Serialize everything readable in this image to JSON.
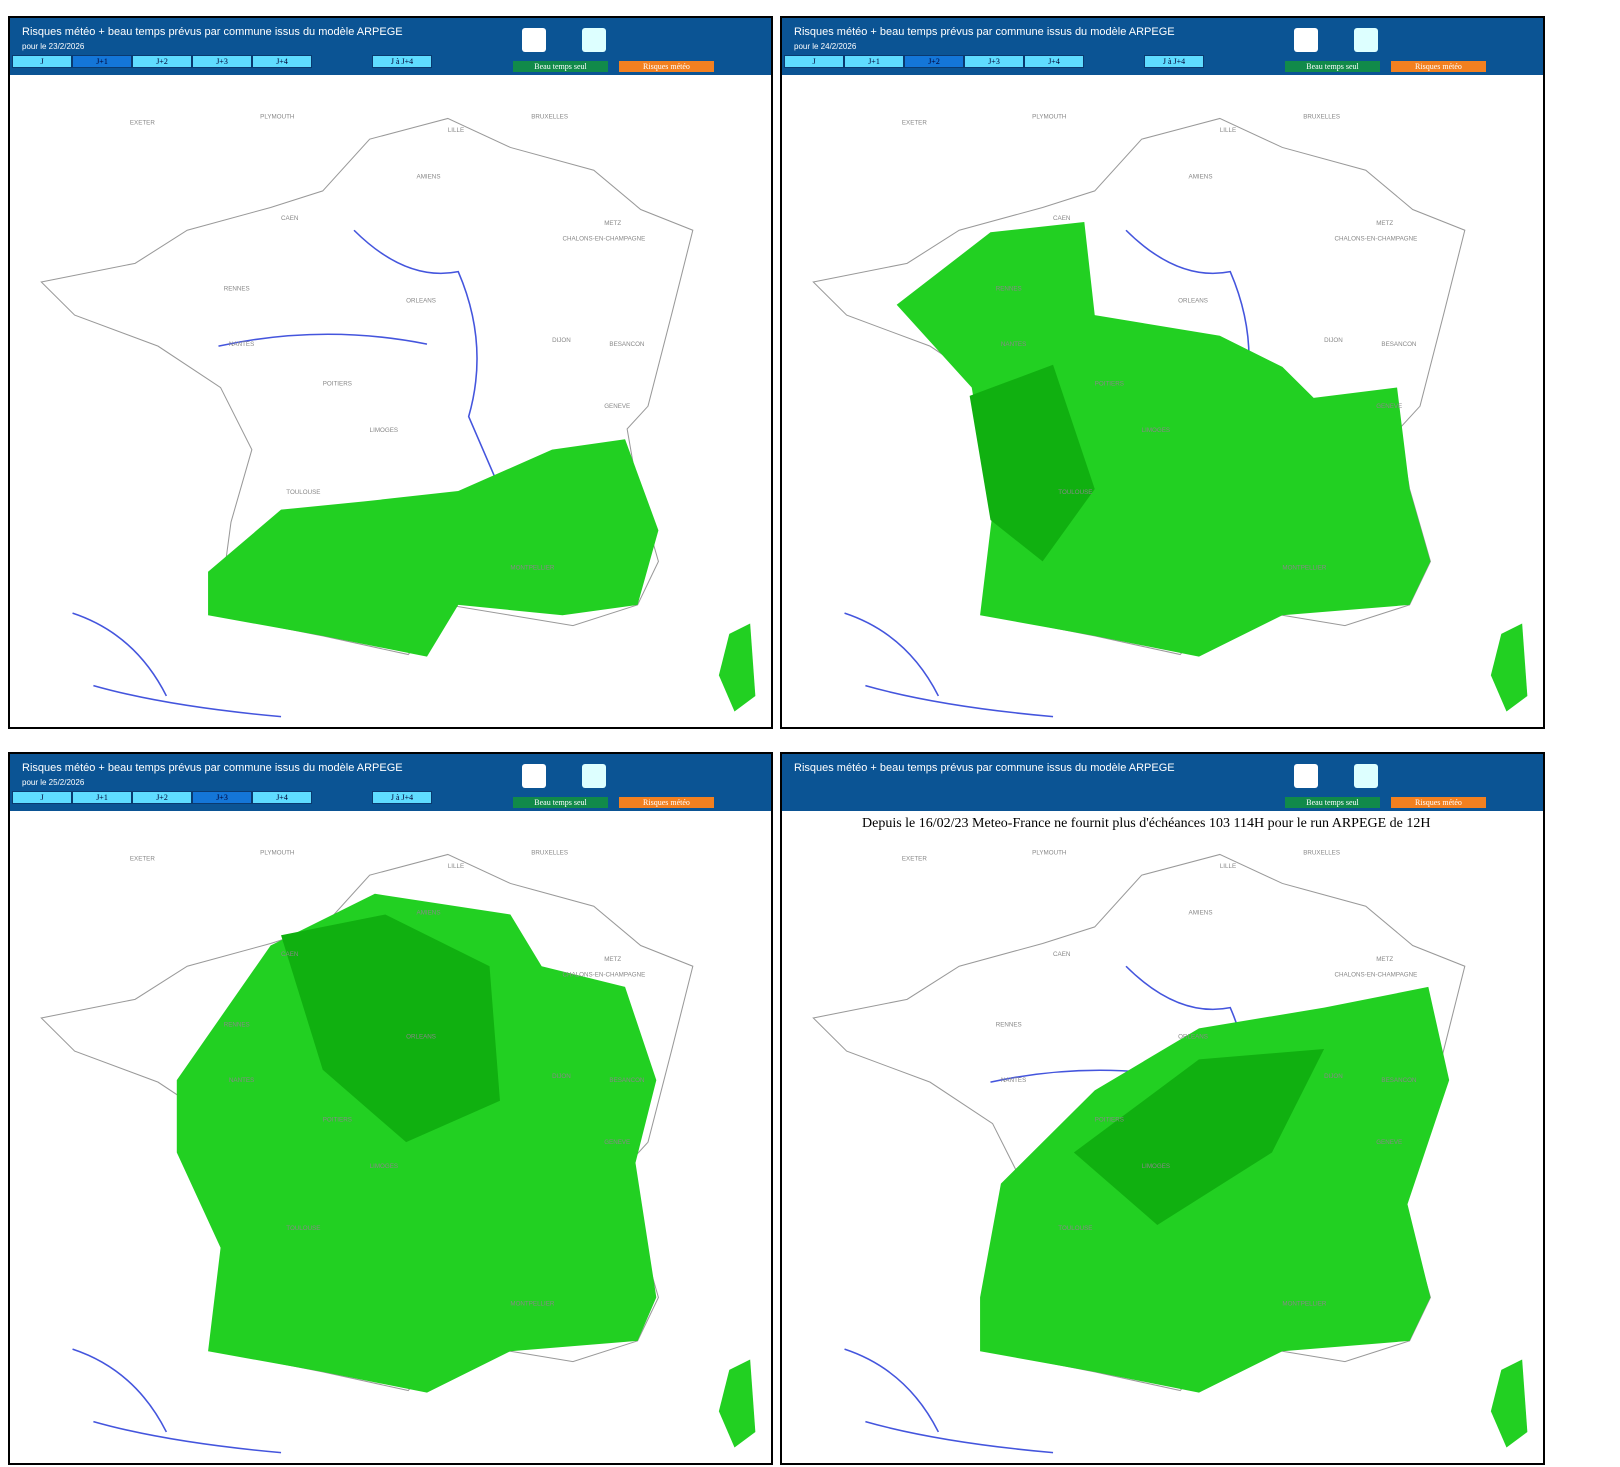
{
  "panels": [
    {
      "title": "Risques météo + beau temps prévus par commune issus du modèle ARPEGE",
      "date": "pour le 23/2/2026",
      "tabs": [
        "J",
        "J+1",
        "J+2",
        "J+3",
        "J+4",
        "J à J+4"
      ],
      "legend": [
        "Beau temps seul",
        "Risques météo"
      ]
    },
    {
      "title": "Risques météo + beau temps prévus par commune issus du modèle ARPEGE",
      "date": "pour le 24/2/2026",
      "tabs": [
        "J",
        "J+1",
        "J+2",
        "J+3",
        "J+4",
        "J à J+4"
      ],
      "legend": [
        "Beau temps seul",
        "Risques météo"
      ]
    },
    {
      "title": "Risques météo + beau temps prévus par commune issus du modèle ARPEGE",
      "date": "pour le 25/2/2026",
      "tabs": [
        "J",
        "J+1",
        "J+2",
        "J+3",
        "J+4",
        "J à J+4"
      ],
      "legend": [
        "Beau temps seul",
        "Risques météo"
      ]
    },
    {
      "title": "Risques météo + beau temps prévus par commune issus du modèle ARPEGE",
      "legend": [
        "Beau temps seul",
        "Risques météo"
      ],
      "notice": "Depuis le 16/02/23 Meteo-France ne fournit plus d'échéances 103 114H pour le run ARPEGE de 12H"
    }
  ],
  "cities": [
    "BRUXELLES",
    "LILLE",
    "AMIENS",
    "CAEN",
    "METZ",
    "CHALONS-EN-CHAMPAGNE",
    "RENNES",
    "ORLEANS",
    "NANTES",
    "DIJON",
    "BESANCON",
    "POITIERS",
    "LIMOGES",
    "GENEVE",
    "TOULOUSE",
    "MONTPELLIER",
    "EXETER",
    "PLYMOUTH"
  ]
}
